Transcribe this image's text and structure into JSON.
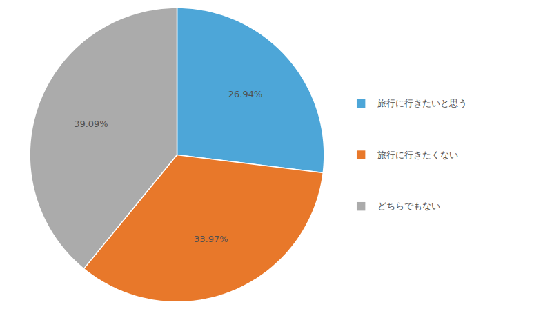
{
  "chart_data": {
    "type": "pie",
    "categories": [
      "旅行に行きたいと思う",
      "旅行に行きたくない",
      "どちらでもない"
    ],
    "values": [
      26.94,
      33.97,
      39.09
    ],
    "value_labels": [
      "26.94%",
      "33.97%",
      "39.09%"
    ],
    "colors": [
      "#4DA6D8",
      "#E8782A",
      "#ABABAB"
    ],
    "data_labels": true,
    "legend": "right"
  }
}
